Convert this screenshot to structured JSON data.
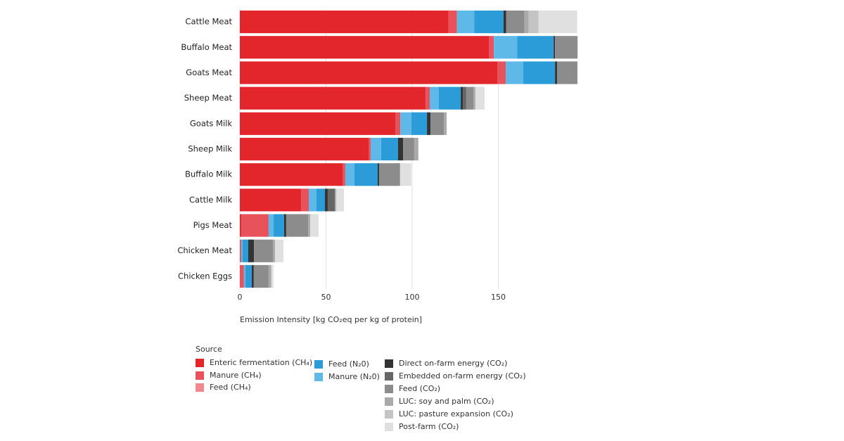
{
  "chart_data": {
    "type": "stacked_barh",
    "x_label": "Emission Intensity [kg CO₂eq per kg of protein]",
    "legend_title": "Source",
    "categories": [
      "Cattle Meat",
      "Buffalo Meat",
      "Goats Meat",
      "Sheep Meat",
      "Goats Milk",
      "Sheep Milk",
      "Buffalo Milk",
      "Cattle Milk",
      "Pigs Meat",
      "Chicken Meat",
      "Chicken Eggs"
    ],
    "xlim": [
      0,
      200
    ],
    "xticks": [
      0,
      50,
      100,
      150
    ],
    "grid": true,
    "series": [
      {
        "name": "Enteric fermentation (CH₄)",
        "color": "#e3262b",
        "values": [
          121,
          144.5,
          149.4,
          107.8,
          90.2,
          74.7,
          59.6,
          35.5,
          0.8,
          0,
          0
        ]
      },
      {
        "name": "Manure (CH₄)",
        "color": "#e8525a",
        "values": [
          5,
          2.9,
          4.9,
          2.4,
          2.9,
          1.2,
          1.6,
          4.5,
          15.9,
          0.8,
          2.4
        ]
      },
      {
        "name": "Feed (CH₄)",
        "color": "#ee8a8e",
        "values": [
          0,
          0,
          0,
          0,
          0,
          0,
          0,
          0,
          0,
          0,
          0
        ]
      },
      {
        "name": "Manure (N₂0)",
        "color": "#5fb9e8",
        "values": [
          10,
          13.5,
          10.2,
          5.3,
          6.5,
          6.1,
          5.3,
          4.5,
          2.9,
          0.8,
          0.8
        ]
      },
      {
        "name": "Feed (N₂0)",
        "color": "#2b9cd8",
        "values": [
          17,
          21.2,
          18.4,
          12.7,
          9,
          9.8,
          13.5,
          4.9,
          6.1,
          3.3,
          3.7
        ]
      },
      {
        "name": "Direct on-farm energy (CO₂)",
        "color": "#333333",
        "values": [
          1.6,
          0.8,
          1.2,
          1.2,
          2,
          2.9,
          0.8,
          1.6,
          1.2,
          3.3,
          1.2
        ]
      },
      {
        "name": "Embedded on-farm energy (CO₂)",
        "color": "#666666",
        "values": [
          0,
          0,
          0,
          2,
          0,
          0,
          0,
          4.1,
          0,
          0,
          0
        ]
      },
      {
        "name": "Feed (CO₂)",
        "color": "#8c8c8c",
        "values": [
          10.6,
          13.1,
          11.8,
          4.1,
          7.8,
          6.5,
          12.2,
          0,
          12.7,
          11,
          8.6
        ]
      },
      {
        "name": "LUC: soy and palm (CO₂)",
        "color": "#aaaaaa",
        "values": [
          2.4,
          0,
          0,
          1.2,
          1.6,
          2.4,
          0,
          0.8,
          1.2,
          1.2,
          1.6
        ]
      },
      {
        "name": "LUC: pasture expansion  (CO₂)",
        "color": "#c4c4c4",
        "values": [
          5.7,
          0,
          0,
          0,
          0,
          0,
          0,
          0,
          0,
          0,
          0
        ]
      },
      {
        "name": "Post-farm (CO₂)",
        "color": "#e0e0e0",
        "values": [
          22.4,
          0,
          0,
          5.3,
          0,
          0,
          6.5,
          4.5,
          4.9,
          4.9,
          1.2
        ]
      }
    ]
  }
}
